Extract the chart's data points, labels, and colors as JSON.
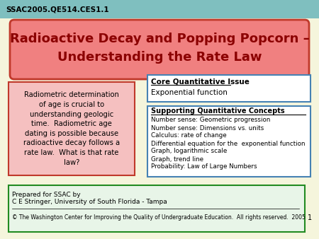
{
  "background_color": "#f5f5dc",
  "header_bg_color": "#7fbfbf",
  "header_text": "SSAC2005.QE514.CES1.1",
  "title_text": "Radioactive Decay and Popping Popcorn –\nUnderstanding the Rate Law",
  "title_bg": "#f08080",
  "title_border": "#c0392b",
  "title_text_color": "#8b0000",
  "left_box_bg": "#f5c0c0",
  "left_box_border": "#c0392b",
  "left_box_text": "Radiometric determination\nof age is crucial to\nunderstanding geologic\ntime.  Radiometric age\ndating is possible because\nradioactive decay follows a\nrate law.  What is that rate\nlaw?",
  "core_box_bg": "#ffffff",
  "core_box_border": "#4682b4",
  "core_box_title": "Core Quantitative Issue",
  "core_box_text": "Exponential function",
  "support_box_bg": "#ffffff",
  "support_box_border": "#4682b4",
  "support_box_title": "Supporting Quantitative Concepts",
  "support_box_lines": [
    "Number sense: Geometric progression",
    "Number sense: Dimensions vs. units",
    "Calculus: rate of change",
    "Differential equation for the  exponential function",
    "Graph, logarithmic scale",
    "Graph, trend line",
    "Probability: Law of Large Numbers"
  ],
  "footer_box_bg": "#e8f5e8",
  "footer_box_border": "#228b22",
  "footer_line1": "Prepared for SSAC by",
  "footer_line2": "C E Stringer, University of South Florida - Tampa",
  "footer_copyright": "© The Washington Center for Improving the Quality of Undergraduate Education.  All rights reserved.  2005",
  "page_number": "1"
}
